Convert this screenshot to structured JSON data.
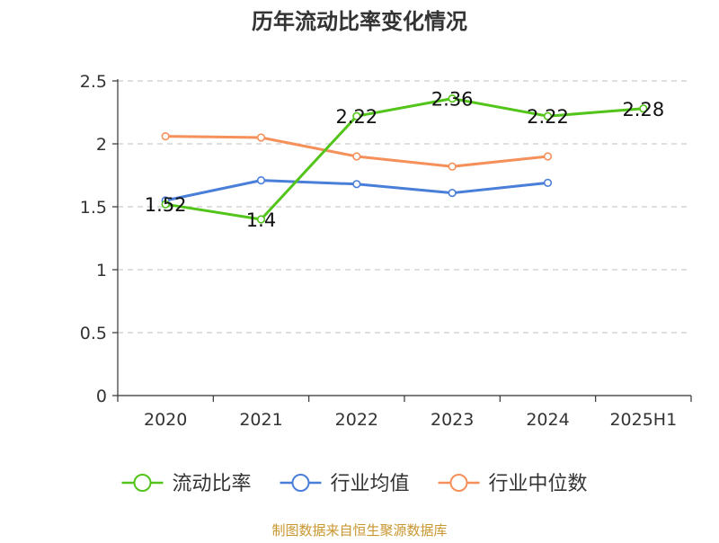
{
  "chart_data": {
    "type": "line",
    "title": "历年流动比率变化情况",
    "categories": [
      "2020",
      "2021",
      "2022",
      "2023",
      "2024",
      "2025H1"
    ],
    "ylim": [
      0,
      2.5
    ],
    "yticks": [
      "0",
      "0.5",
      "1",
      "1.5",
      "2",
      "2.5"
    ],
    "grid": true,
    "legend_position": "bottom",
    "series": [
      {
        "name": "流动比率",
        "color": "#52c41a",
        "values": [
          1.52,
          1.4,
          2.22,
          2.36,
          2.22,
          2.28
        ],
        "labels": [
          "1.52",
          "1.4",
          "2.22",
          "2.36",
          "2.22",
          "2.28"
        ]
      },
      {
        "name": "行业均值",
        "color": "#4a7fd9",
        "values": [
          1.55,
          1.71,
          1.68,
          1.61,
          1.69,
          null
        ]
      },
      {
        "name": "行业中位数",
        "color": "#f5905a",
        "values": [
          2.06,
          2.05,
          1.9,
          1.82,
          1.9,
          null
        ]
      }
    ]
  },
  "footer": {
    "source": "制图数据来自恒生聚源数据库",
    "source_color": "#c8962e"
  }
}
